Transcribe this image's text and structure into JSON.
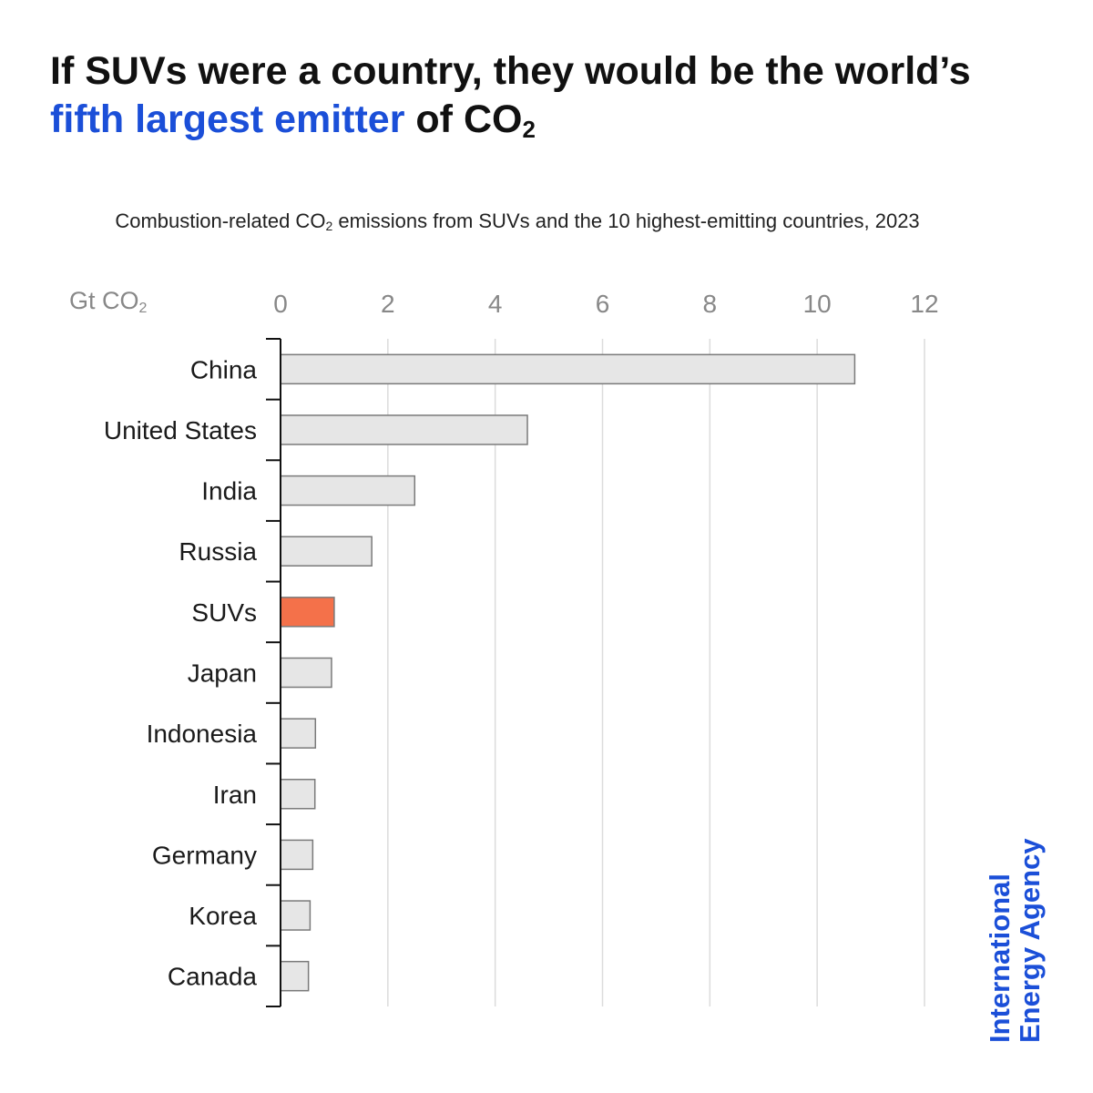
{
  "headline": {
    "part1": "If SUVs were a country, they would be the world’s ",
    "highlight": "fifth largest emitter",
    "part2": " of CO",
    "sub": "2"
  },
  "subtitle": {
    "part1": "Combustion-related CO",
    "sub": "2",
    "part2": " emissions from SUVs and the 10 highest-emitting countries, 2023"
  },
  "unit": {
    "base": "Gt CO",
    "sub": "2"
  },
  "chart_data": {
    "type": "bar",
    "orientation": "horizontal",
    "categories": [
      "China",
      "United States",
      "India",
      "Russia",
      "SUVs",
      "Japan",
      "Indonesia",
      "Iran",
      "Germany",
      "Korea",
      "Canada"
    ],
    "values": [
      10.7,
      4.6,
      2.5,
      1.7,
      1.0,
      0.95,
      0.65,
      0.64,
      0.6,
      0.55,
      0.52
    ],
    "highlight_category": "SUVs",
    "xlim": [
      0,
      12
    ],
    "xticks": [
      "0",
      "2",
      "4",
      "6",
      "8",
      "10",
      "12"
    ],
    "grid": true,
    "axis_position": "top",
    "colors": {
      "default_bar": "#e6e6e6",
      "highlight_bar": "#f4714a",
      "bar_edge": "#7a7a7a",
      "grid": "#dcdcdc"
    }
  },
  "brand": {
    "line1": "International",
    "line2": "Energy Agency"
  }
}
